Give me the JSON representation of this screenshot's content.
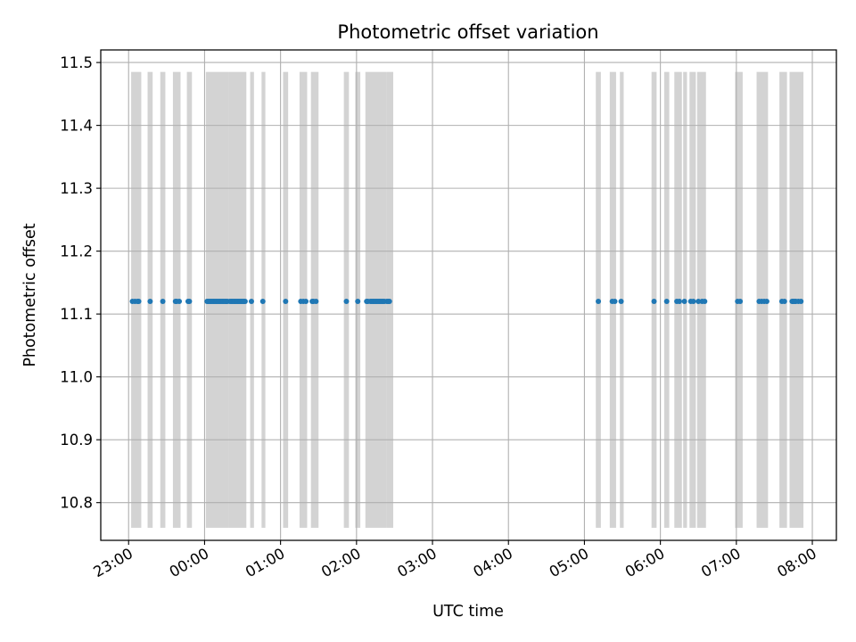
{
  "chart_data": {
    "type": "scatter",
    "title": "Photometric offset variation",
    "xlabel": "UTC time",
    "ylabel": "Photometric offset",
    "grid": true,
    "x_ticks": [
      "23:00",
      "00:00",
      "01:00",
      "02:00",
      "03:00",
      "04:00",
      "05:00",
      "06:00",
      "07:00",
      "08:00"
    ],
    "y_ticks": [
      "10.8",
      "10.9",
      "11.0",
      "11.1",
      "11.2",
      "11.3",
      "11.4",
      "11.5"
    ],
    "xlim": [
      "22:38",
      "08:19"
    ],
    "ylim": [
      10.74,
      11.52
    ],
    "band_range": [
      10.76,
      11.485
    ],
    "marker_color": "#1f77b4",
    "band_color": "#d3d3d3",
    "series": [
      {
        "y": 11.12,
        "x": [
          "23:03",
          "23:05",
          "23:07",
          "23:08",
          "23:17",
          "23:27",
          "23:37",
          "23:38",
          "23:40",
          "23:47",
          "23:48",
          "00:02",
          "00:03",
          "00:04",
          "00:05",
          "00:06",
          "00:07",
          "00:08",
          "00:09",
          "00:10",
          "00:11",
          "00:12",
          "00:13",
          "00:14",
          "00:15",
          "00:16",
          "00:17",
          "00:18",
          "00:20",
          "00:21",
          "00:22",
          "00:23",
          "00:24",
          "00:25",
          "00:26",
          "00:27",
          "00:28",
          "00:29",
          "00:30",
          "00:31",
          "00:32",
          "00:37",
          "00:46",
          "01:04",
          "01:16",
          "01:18",
          "01:20",
          "01:25",
          "01:26",
          "01:28",
          "01:52",
          "02:01",
          "02:08",
          "02:09",
          "02:11",
          "02:12",
          "02:13",
          "02:14",
          "02:15",
          "02:16",
          "02:17",
          "02:18",
          "02:19",
          "02:20",
          "02:21",
          "02:22",
          "02:24",
          "02:25",
          "02:26",
          "05:11",
          "05:22",
          "05:24",
          "05:29",
          "05:55",
          "06:05",
          "06:13",
          "06:15",
          "06:19",
          "06:24",
          "06:26",
          "06:30",
          "06:33",
          "06:35",
          "07:01",
          "07:03",
          "07:18",
          "07:20",
          "07:22",
          "07:24",
          "07:36",
          "07:38",
          "07:44",
          "07:45",
          "07:46",
          "07:47",
          "07:49",
          "07:51"
        ]
      }
    ],
    "bands": [
      [
        "23:02",
        "23:10"
      ],
      [
        "23:15",
        "23:19"
      ],
      [
        "23:25",
        "23:29"
      ],
      [
        "23:35",
        "23:41"
      ],
      [
        "23:46",
        "23:50"
      ],
      [
        "00:01",
        "00:19"
      ],
      [
        "00:19",
        "00:33"
      ],
      [
        "00:36",
        "00:39"
      ],
      [
        "00:45",
        "00:48"
      ],
      [
        "01:02",
        "01:06"
      ],
      [
        "01:15",
        "01:21"
      ],
      [
        "01:24",
        "01:30"
      ],
      [
        "01:50",
        "01:54"
      ],
      [
        "01:59",
        "02:03"
      ],
      [
        "02:07",
        "02:24"
      ],
      [
        "02:24",
        "02:29"
      ],
      [
        "05:09",
        "05:13"
      ],
      [
        "05:20",
        "05:25"
      ],
      [
        "05:28",
        "05:31"
      ],
      [
        "05:53",
        "05:57"
      ],
      [
        "06:03",
        "06:07"
      ],
      [
        "06:11",
        "06:17"
      ],
      [
        "06:18",
        "06:21"
      ],
      [
        "06:23",
        "06:28"
      ],
      [
        "06:29",
        "06:36"
      ],
      [
        "06:59",
        "07:05"
      ],
      [
        "07:16",
        "07:25"
      ],
      [
        "07:34",
        "07:40"
      ],
      [
        "07:42",
        "07:53"
      ]
    ]
  }
}
